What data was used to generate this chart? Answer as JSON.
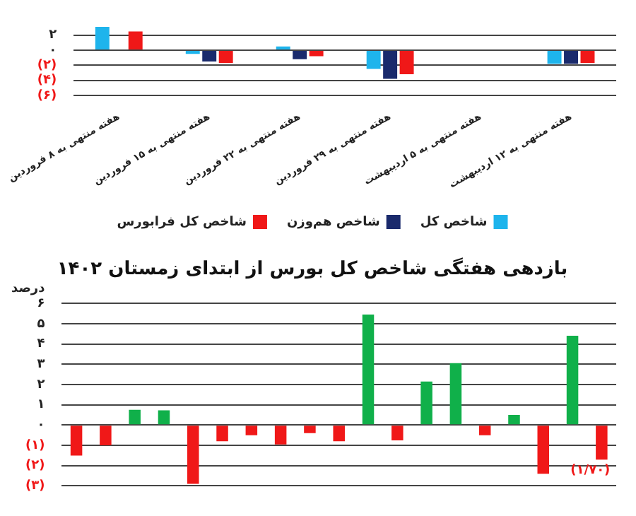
{
  "chart_data": [
    {
      "type": "bar",
      "categories": [
        "هفته منتهی به ۸ فروردین",
        "هفته منتهی به ۱۵ فروردین",
        "هفته منتهی به ۲۲ فروردین",
        "هفته منتهی به ۲۹ فروردین",
        "هفته منتهی به ۵ اردیبهشت",
        "هفته منتهی به ۱۲ اردیبهشت"
      ],
      "series": [
        {
          "name": "شاخص کل",
          "color": "#1eb4ec",
          "values": [
            3.1,
            -0.5,
            0.5,
            -2.5,
            null,
            -1.8
          ]
        },
        {
          "name": "شاخص هم‌وزن",
          "color": "#1a2a6c",
          "values": [
            null,
            -1.5,
            -1.2,
            -3.8,
            null,
            -1.8
          ]
        },
        {
          "name": "شاخص کل فرابورس",
          "color": "#f01818",
          "values": [
            2.5,
            -1.7,
            -0.8,
            -3.2,
            null,
            -1.7
          ]
        }
      ],
      "ylim": [
        -6,
        3.4
      ],
      "yticks": [
        {
          "value": 2,
          "label": "۲"
        },
        {
          "value": 0,
          "label": "۰"
        },
        {
          "value": -2,
          "label": "(۲)"
        },
        {
          "value": -4,
          "label": "(۴)"
        },
        {
          "value": -6,
          "label": "(۶)"
        }
      ],
      "grid": "y",
      "legend": "bottom"
    },
    {
      "type": "bar",
      "title": "بازدهی هفتگی شاخص کل بورس از ابتدای زمستان ۱۴۰۲",
      "ylabel": "درصد",
      "categories": [
        null,
        null,
        null,
        null,
        null,
        null,
        null,
        null,
        null,
        null,
        null,
        null,
        null,
        null,
        null,
        null,
        null,
        null,
        null
      ],
      "values": [
        -1.5,
        -1.0,
        0.75,
        0.73,
        -2.9,
        -0.8,
        -0.5,
        -0.95,
        -0.4,
        -0.8,
        5.45,
        -0.75,
        2.15,
        3.05,
        -0.5,
        0.5,
        -2.4,
        4.4,
        -1.7
      ],
      "colors": [
        "#f01818",
        "#f01818",
        "#10b04a",
        "#10b04a",
        "#f01818",
        "#f01818",
        "#f01818",
        "#f01818",
        "#f01818",
        "#f01818",
        "#10b04a",
        "#f01818",
        "#10b04a",
        "#10b04a",
        "#f01818",
        "#10b04a",
        "#f01818",
        "#10b04a",
        "#f01818"
      ],
      "value_labels": [
        null,
        null,
        null,
        null,
        null,
        null,
        null,
        null,
        null,
        null,
        null,
        null,
        null,
        null,
        null,
        null,
        null,
        null,
        "(۱/۷۰)"
      ],
      "ylim": [
        -3,
        6
      ],
      "yticks": [
        {
          "value": 6,
          "label": "۶"
        },
        {
          "value": 5,
          "label": "۵"
        },
        {
          "value": 4,
          "label": "۴"
        },
        {
          "value": 3,
          "label": "۳"
        },
        {
          "value": 2,
          "label": "۲"
        },
        {
          "value": 1,
          "label": "۱"
        },
        {
          "value": 0,
          "label": "۰"
        },
        {
          "value": -1,
          "label": "(۱)"
        },
        {
          "value": -2,
          "label": "(۲)"
        },
        {
          "value": -3,
          "label": "(۳)"
        }
      ],
      "grid": "y"
    }
  ]
}
